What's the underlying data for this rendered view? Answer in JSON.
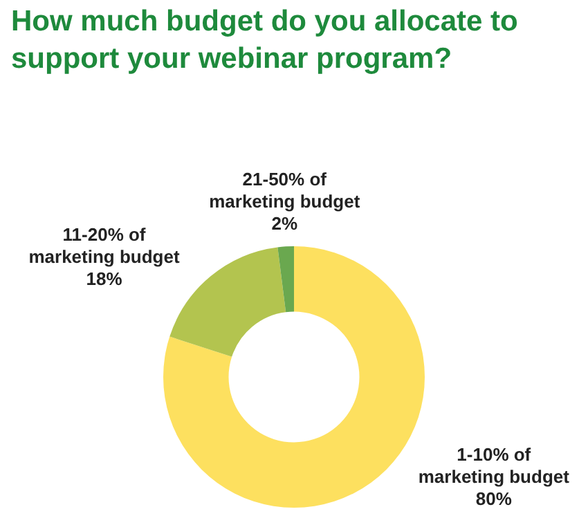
{
  "chart_data": {
    "type": "donut",
    "title": "How much budget do you allocate to support your webinar program?",
    "categories": [
      "1-10% of marketing budget",
      "11-20% of marketing budget",
      "21-50% of marketing budget"
    ],
    "values": [
      80,
      18,
      2
    ],
    "colors": [
      "#fde05f",
      "#b3c44f",
      "#6aa84f"
    ],
    "value_labels": [
      "80%",
      "18%",
      "2%"
    ],
    "legend": false
  }
}
